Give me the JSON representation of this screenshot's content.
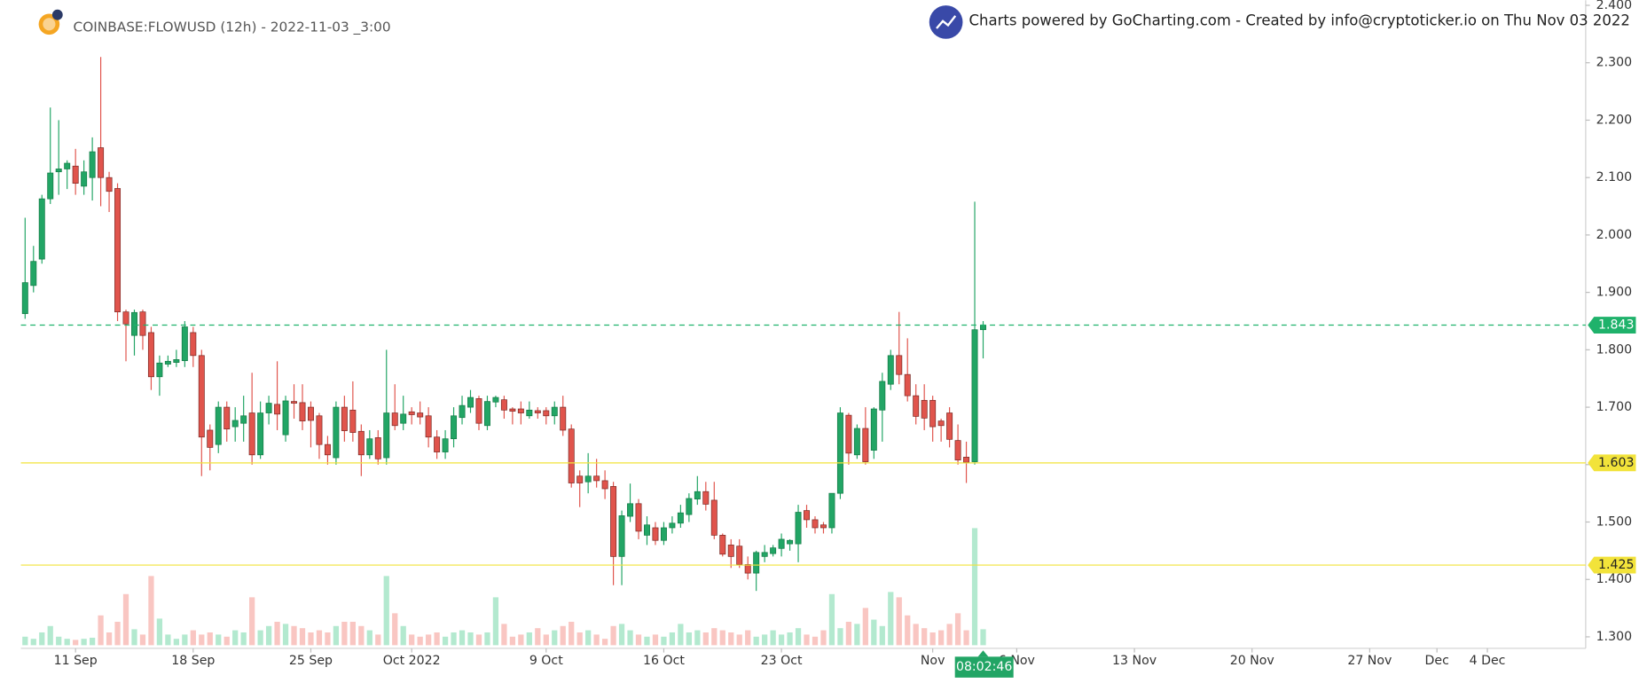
{
  "chart_data": {
    "type": "candlestick",
    "title": "COINBASE:FLOWUSD (12h) - 2022-11-03 _3:00",
    "attribution": "Charts powered by GoCharting.com - Created by info@cryptoticker.io on Thu Nov 03 2022",
    "countdown": "08:02:46",
    "up_color": "#22a565",
    "down_color": "#e0544c",
    "up_volume_color": "#b3e9cf",
    "down_volume_color": "#f9c6c2",
    "open": [
      1.863,
      1.912,
      1.958,
      2.063,
      2.11,
      2.115,
      2.12,
      2.085,
      2.1,
      2.152,
      2.1,
      2.081,
      1.866,
      1.825,
      1.866,
      1.83,
      1.753,
      1.775,
      1.778,
      1.781,
      1.83,
      1.79,
      1.66,
      1.635,
      1.7,
      1.666,
      1.672,
      1.69,
      1.617,
      1.69,
      1.705,
      1.652,
      1.71,
      1.708,
      1.7,
      1.685,
      1.635,
      1.612,
      1.7,
      1.695,
      1.658,
      1.617,
      1.647,
      1.612,
      1.69,
      1.672,
      1.692,
      1.69,
      1.685,
      1.648,
      1.622,
      1.645,
      1.682,
      1.7,
      1.715,
      1.668,
      1.709,
      1.713,
      1.697,
      1.697,
      1.685,
      1.694,
      1.694,
      1.685,
      1.7,
      1.662,
      1.58,
      1.57,
      1.58,
      1.572,
      1.562,
      1.44,
      1.51,
      1.532,
      1.477,
      1.49,
      1.468,
      1.49,
      1.498,
      1.513,
      1.54,
      1.553,
      1.538,
      1.477,
      1.46,
      1.458,
      1.426,
      1.411,
      1.44,
      1.445,
      1.454,
      1.462,
      1.462,
      1.52,
      1.504,
      1.495,
      1.49,
      1.55,
      1.686,
      1.617,
      1.663,
      1.625,
      1.695,
      1.74,
      1.79,
      1.757,
      1.72,
      1.712,
      1.712,
      1.676,
      1.69,
      1.642,
      1.613,
      1.605,
      1.835
    ],
    "high": [
      2.03,
      1.981,
      2.07,
      2.222,
      2.2,
      2.13,
      2.15,
      2.13,
      2.17,
      2.31,
      2.11,
      2.09,
      1.87,
      1.87,
      1.87,
      1.84,
      1.79,
      1.79,
      1.8,
      1.85,
      1.84,
      1.8,
      1.67,
      1.71,
      1.71,
      1.7,
      1.72,
      1.76,
      1.71,
      1.72,
      1.78,
      1.72,
      1.74,
      1.74,
      1.71,
      1.69,
      1.65,
      1.71,
      1.72,
      1.745,
      1.67,
      1.66,
      1.66,
      1.8,
      1.74,
      1.72,
      1.7,
      1.71,
      1.7,
      1.66,
      1.66,
      1.7,
      1.72,
      1.73,
      1.72,
      1.72,
      1.72,
      1.72,
      1.7,
      1.71,
      1.71,
      1.7,
      1.7,
      1.71,
      1.72,
      1.67,
      1.59,
      1.62,
      1.61,
      1.59,
      1.57,
      1.52,
      1.567,
      1.54,
      1.51,
      1.5,
      1.5,
      1.51,
      1.53,
      1.55,
      1.58,
      1.57,
      1.57,
      1.48,
      1.47,
      1.47,
      1.44,
      1.45,
      1.46,
      1.46,
      1.48,
      1.47,
      1.53,
      1.53,
      1.51,
      1.5,
      1.55,
      1.7,
      1.69,
      1.67,
      1.7,
      1.7,
      1.76,
      1.8,
      1.866,
      1.82,
      1.74,
      1.74,
      1.72,
      1.68,
      1.7,
      1.67,
      1.64,
      2.058,
      1.85
    ],
    "low": [
      1.854,
      1.9,
      1.95,
      2.054,
      2.07,
      2.08,
      2.07,
      2.07,
      2.06,
      2.05,
      2.04,
      1.85,
      1.78,
      1.79,
      1.8,
      1.73,
      1.72,
      1.77,
      1.77,
      1.77,
      1.77,
      1.58,
      1.59,
      1.62,
      1.64,
      1.64,
      1.64,
      1.6,
      1.61,
      1.67,
      1.66,
      1.64,
      1.68,
      1.66,
      1.63,
      1.61,
      1.6,
      1.6,
      1.64,
      1.64,
      1.58,
      1.61,
      1.6,
      1.6,
      1.66,
      1.66,
      1.67,
      1.67,
      1.63,
      1.61,
      1.61,
      1.63,
      1.67,
      1.69,
      1.66,
      1.66,
      1.7,
      1.68,
      1.67,
      1.67,
      1.68,
      1.68,
      1.67,
      1.67,
      1.65,
      1.56,
      1.526,
      1.55,
      1.56,
      1.54,
      1.39,
      1.39,
      1.5,
      1.47,
      1.46,
      1.46,
      1.46,
      1.48,
      1.49,
      1.5,
      1.53,
      1.52,
      1.47,
      1.44,
      1.42,
      1.42,
      1.4,
      1.38,
      1.43,
      1.44,
      1.44,
      1.45,
      1.43,
      1.49,
      1.48,
      1.48,
      1.48,
      1.54,
      1.6,
      1.61,
      1.6,
      1.61,
      1.64,
      1.73,
      1.74,
      1.71,
      1.67,
      1.66,
      1.64,
      1.64,
      1.63,
      1.6,
      1.568,
      1.6,
      1.785
    ],
    "close": [
      1.917,
      1.954,
      2.063,
      2.108,
      2.115,
      2.125,
      2.09,
      2.11,
      2.145,
      2.1,
      2.076,
      1.866,
      1.845,
      1.865,
      1.825,
      1.753,
      1.777,
      1.78,
      1.783,
      1.84,
      1.79,
      1.648,
      1.63,
      1.7,
      1.662,
      1.677,
      1.685,
      1.617,
      1.69,
      1.707,
      1.688,
      1.711,
      1.707,
      1.676,
      1.677,
      1.635,
      1.617,
      1.7,
      1.659,
      1.656,
      1.617,
      1.645,
      1.61,
      1.69,
      1.668,
      1.688,
      1.687,
      1.683,
      1.648,
      1.622,
      1.645,
      1.685,
      1.703,
      1.717,
      1.672,
      1.71,
      1.717,
      1.695,
      1.693,
      1.69,
      1.695,
      1.69,
      1.685,
      1.7,
      1.66,
      1.568,
      1.568,
      1.58,
      1.572,
      1.558,
      1.44,
      1.511,
      1.532,
      1.484,
      1.495,
      1.468,
      1.49,
      1.498,
      1.516,
      1.541,
      1.553,
      1.531,
      1.477,
      1.444,
      1.44,
      1.426,
      1.411,
      1.447,
      1.447,
      1.455,
      1.47,
      1.468,
      1.517,
      1.504,
      1.49,
      1.49,
      1.55,
      1.69,
      1.62,
      1.663,
      1.605,
      1.697,
      1.745,
      1.79,
      1.757,
      1.72,
      1.684,
      1.681,
      1.666,
      1.668,
      1.644,
      1.608,
      1.604,
      1.835,
      1.843
    ],
    "volume": [
      8,
      6,
      12,
      18,
      8,
      6,
      5,
      6,
      7,
      28,
      12,
      22,
      48,
      15,
      10,
      65,
      25,
      10,
      6,
      10,
      14,
      10,
      12,
      10,
      8,
      14,
      12,
      45,
      14,
      18,
      22,
      20,
      18,
      16,
      12,
      14,
      12,
      18,
      22,
      22,
      18,
      14,
      10,
      65,
      30,
      18,
      10,
      8,
      10,
      12,
      8,
      12,
      14,
      12,
      10,
      12,
      45,
      20,
      8,
      10,
      12,
      16,
      10,
      14,
      18,
      22,
      12,
      14,
      10,
      6,
      18,
      20,
      14,
      10,
      8,
      10,
      8,
      12,
      20,
      12,
      14,
      12,
      16,
      14,
      12,
      10,
      14,
      8,
      10,
      14,
      10,
      12,
      16,
      10,
      8,
      14,
      48,
      16,
      22,
      20,
      35,
      24,
      18,
      50,
      45,
      28,
      20,
      16,
      12,
      14,
      20,
      30,
      14,
      110,
      15
    ],
    "xlim": [
      -0.5,
      185.7
    ],
    "xticks": [
      {
        "value": 6,
        "label": "11 Sep"
      },
      {
        "value": 20,
        "label": "18 Sep"
      },
      {
        "value": 34,
        "label": "25 Sep"
      },
      {
        "value": 46,
        "label": "Oct 2022"
      },
      {
        "value": 62,
        "label": "9 Oct"
      },
      {
        "value": 76,
        "label": "16 Oct"
      },
      {
        "value": 90,
        "label": "23 Oct"
      },
      {
        "value": 108,
        "label": "Nov"
      },
      {
        "value": 118,
        "label": "6 Nov"
      },
      {
        "value": 132,
        "label": "13 Nov"
      },
      {
        "value": 146,
        "label": "20 Nov"
      },
      {
        "value": 160,
        "label": "27 Nov"
      },
      {
        "value": 168,
        "label": "Dec"
      },
      {
        "value": 174,
        "label": "4 Dec"
      }
    ],
    "ylim": [
      1.28,
      2.409
    ],
    "yticks": [
      {
        "value": 1.3,
        "label": "1.300"
      },
      {
        "value": 1.4,
        "label": "1.400"
      },
      {
        "value": 1.5,
        "label": "1.500"
      },
      {
        "value": 1.6,
        "label": "1.600"
      },
      {
        "value": 1.7,
        "label": "1.700"
      },
      {
        "value": 1.8,
        "label": "1.800"
      },
      {
        "value": 1.9,
        "label": "1.900"
      },
      {
        "value": 2.0,
        "label": "2.000"
      },
      {
        "value": 2.1,
        "label": "2.100"
      },
      {
        "value": 2.2,
        "label": "2.200"
      },
      {
        "value": 2.3,
        "label": "2.300"
      },
      {
        "value": 2.4,
        "label": "2.400"
      }
    ],
    "levels": [
      {
        "value": 1.843,
        "color": "#1fb26b",
        "style": "dashed"
      },
      {
        "value": 1.603,
        "color": "#f2e33a",
        "style": "solid"
      },
      {
        "value": 1.425,
        "color": "#f2e33a",
        "style": "solid"
      }
    ]
  }
}
